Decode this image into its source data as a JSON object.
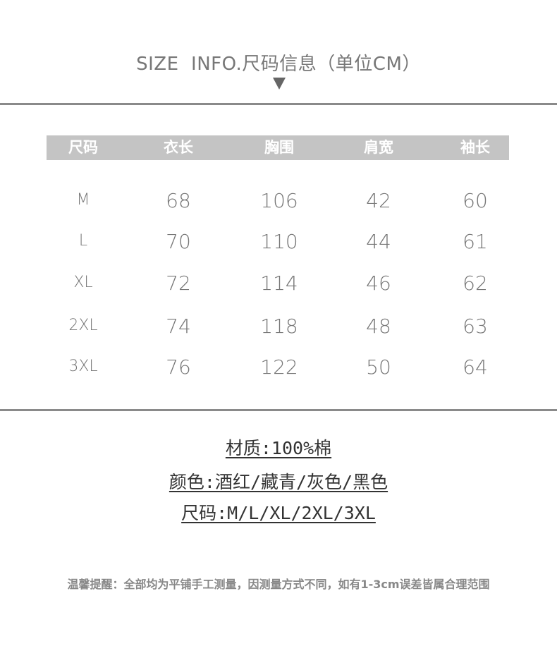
{
  "title": "SIZE  INFO.尺码信息（单位CM）",
  "arrow_icon": "triangle-down-icon",
  "table": {
    "headers": [
      "尺码",
      "衣长",
      "胸围",
      "肩宽",
      "袖长"
    ],
    "rows": [
      [
        "M",
        "68",
        "106",
        "42",
        "60"
      ],
      [
        "L",
        "70",
        "110",
        "44",
        "61"
      ],
      [
        "XL",
        "72",
        "114",
        "46",
        "62"
      ],
      [
        "2XL",
        "74",
        "118",
        "48",
        "63"
      ],
      [
        "3XL",
        "76",
        "122",
        "50",
        "64"
      ]
    ]
  },
  "info": {
    "material": "材质:100%棉",
    "color": "颜色:酒红/藏青/灰色/黑色",
    "size": "尺码:M/L/XL/2XL/3XL"
  },
  "footer": "温馨提醒：全部均为平铺手工测量，因测量方式不同，如有1-3cm误差皆属合理范围"
}
